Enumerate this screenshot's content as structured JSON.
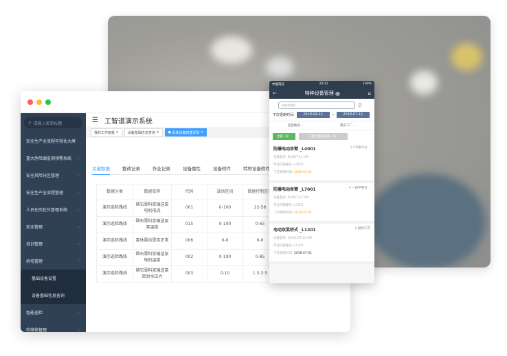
{
  "desktop": {
    "app_title": "工智道演示系统",
    "search_placeholder": "请输入菜单标题",
    "menu": [
      {
        "label": "安全生产全流程可视化大屏",
        "chevron": ""
      },
      {
        "label": "重大危险源监测预警系统",
        "chevron": "⌄"
      },
      {
        "label": "安全风险分区管理",
        "chevron": "⌄"
      },
      {
        "label": "安全生产全流程管理",
        "chevron": "⌄"
      },
      {
        "label": "人员在岗在位管理系统",
        "chevron": "⌄"
      },
      {
        "label": "安全管理",
        "chevron": "⌄"
      },
      {
        "label": "培训管理",
        "chevron": "⌄"
      },
      {
        "label": "机电管理",
        "chevron": "⌃"
      }
    ],
    "submenu": [
      {
        "label": "基础设备设置"
      },
      {
        "label": "设备基础信息查询"
      }
    ],
    "menu_after": [
      {
        "label": "智能巡检",
        "chevron": "⌄"
      },
      {
        "label": "检维修管理",
        "chevron": "⌄"
      }
    ],
    "tags": [
      {
        "label": "我的工作面板"
      },
      {
        "label": "设备基础信息查询"
      },
      {
        "label": "具体设备管理详情"
      }
    ],
    "tabs": [
      "关键数据",
      "整改记录",
      "作业记录",
      "设备属性",
      "设备附件",
      "特种设备附件"
    ],
    "table": {
      "headers": [
        "数据分类",
        "数据名称",
        "代码",
        "波动区间",
        "数据控制区间"
      ],
      "rows": [
        [
          "演示巡检路线",
          "磷石膏料浆输送泵电机电流",
          "001",
          "0-100",
          "22-58"
        ],
        [
          "演示巡检路线",
          "磷石膏料浆输送泵泵温度",
          "015",
          "0-100",
          "0-65"
        ],
        [
          "演示巡检路线",
          "泵体震动是否正常",
          "006",
          "0-0",
          "0-0"
        ],
        [
          "演示巡检路线",
          "磷石膏料浆输送泵电机温度",
          "002",
          "0-100",
          "0-85"
        ],
        [
          "演示巡检路线",
          "磷石膏料浆输送泵密封水压力",
          "003",
          "0-10",
          "1.5-3.5"
        ]
      ]
    }
  },
  "mobile": {
    "status": {
      "carrier": "中国电信",
      "time": "20:21",
      "battery": "100%"
    },
    "title": "特种设备管理",
    "search_placeholder": "关键字搜索",
    "date_label": "下次更新时间:",
    "date_from": "2018-04-11",
    "date_sep": "~",
    "date_to": "2018-07-11",
    "filter_type": "全部类别",
    "filter_factory": "南京工厂",
    "btn_all": "全部（3）",
    "btn_expiring": "只显示临检设备（2）",
    "cards": [
      {
        "name": "防爆电动单臂 _L4001",
        "location": "CO采冷分...",
        "model": "设备型号: BLDST-14.5M",
        "code": "单位内部编号: L4001",
        "next_label": "下次更新时间:",
        "next": "2018-05-01",
        "overdue": true
      },
      {
        "name": "防爆电动单臂 _L7001",
        "location": "一期平整合...",
        "model": "设备型号: BLDST-22.5M",
        "code": "单位内部编号: L7001",
        "next_label": "下次更新时间:",
        "next": "2018-05-01",
        "overdue": true
      },
      {
        "name": "电动双梁桥式 _L1201",
        "location": "磨煤工序",
        "model": "设备型号: QD32/5T-25.5M",
        "code": "单位内部编号: L1201",
        "next_label": "下次更新时间:",
        "next": "2018-07-01",
        "overdue": false
      }
    ]
  },
  "colors": {
    "sidebar": "#304156",
    "accent": "#409eff",
    "mobile_header": "#2f3e4f",
    "warning": "#f5a623",
    "success": "#5cb85c"
  }
}
